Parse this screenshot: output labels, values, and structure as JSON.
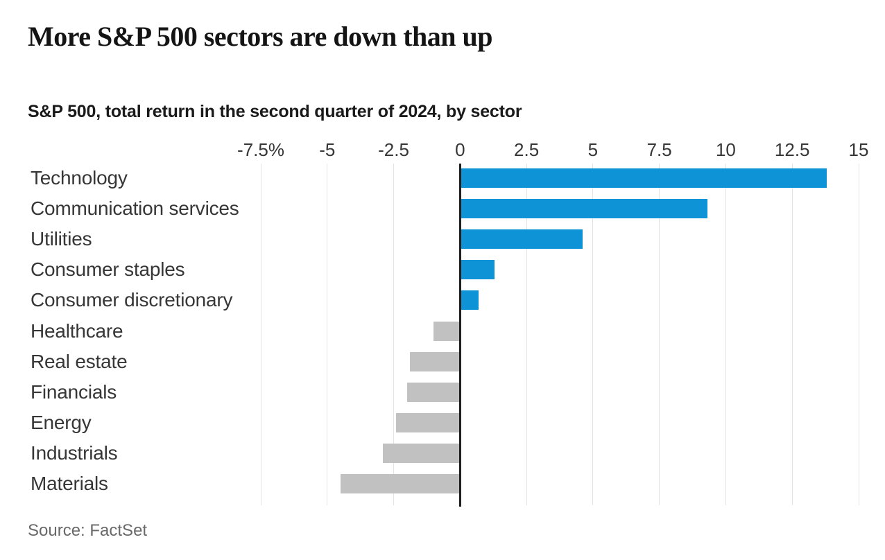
{
  "title": "More S&P 500 sectors are down than up",
  "subtitle": "S&P 500, total return in the second quarter of 2024, by sector",
  "source": "Source: FactSet",
  "colors": {
    "positive_bar": "#0e94d6",
    "negative_bar": "#c1c1c1",
    "zero_line": "#1f1f1f",
    "grid_line": "#e3e3e3"
  },
  "chart_data": {
    "type": "bar",
    "orientation": "horizontal",
    "title": "More S&P 500 sectors are down than up",
    "subtitle": "S&P 500, total return in the second quarter of 2024, by sector",
    "unit": "%",
    "categories": [
      "Technology",
      "Communication services",
      "Utilities",
      "Consumer staples",
      "Consumer discretionary",
      "Healthcare",
      "Real estate",
      "Financials",
      "Energy",
      "Industrials",
      "Materials"
    ],
    "values": [
      13.8,
      9.3,
      4.6,
      1.3,
      0.7,
      -1.0,
      -1.9,
      -2.0,
      -2.4,
      -2.9,
      -4.5
    ],
    "xlim": [
      -7.5,
      15
    ],
    "xticks": [
      -7.5,
      -5,
      -2.5,
      0,
      2.5,
      5,
      7.5,
      10,
      12.5,
      15
    ],
    "xtick_labels": [
      "-7.5%",
      "-5",
      "-2.5",
      "0",
      "2.5",
      "5",
      "7.5",
      "10",
      "12.5",
      "15"
    ],
    "grid": true,
    "legend": false
  }
}
